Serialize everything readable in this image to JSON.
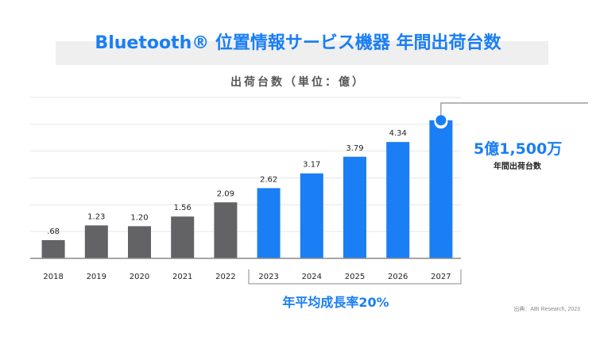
{
  "title": "Bluetooth® 位置情報サービス機器 年間出荷台数",
  "subtitle": "出荷台数（単位：億）",
  "callout": {
    "value": "5億1,500万",
    "label": "年間出荷台数"
  },
  "cagr_label": "年平均成長率20%",
  "source": "出典：ABI Research, 2023",
  "colors": {
    "accent": "#1a7ef5",
    "historical": "#636366",
    "grid": "#e6e6e6",
    "axis": "#8a8a8a"
  },
  "chart_data": {
    "type": "bar",
    "title": "Bluetooth® 位置情報サービス機器 年間出荷台数",
    "ylabel": "出荷台数（単位：億）",
    "xlabel": "",
    "categories": [
      "2018",
      "2019",
      "2020",
      "2021",
      "2022",
      "2023",
      "2024",
      "2025",
      "2026",
      "2027"
    ],
    "values": [
      0.68,
      1.23,
      1.2,
      1.56,
      2.09,
      2.62,
      3.17,
      3.79,
      4.34,
      5.15
    ],
    "data_labels": [
      ".68",
      "1.23",
      "1.20",
      "1.56",
      "2.09",
      "2.62",
      "3.17",
      "3.79",
      "4.34",
      ""
    ],
    "series_type": [
      "actual",
      "actual",
      "actual",
      "actual",
      "actual",
      "forecast",
      "forecast",
      "forecast",
      "forecast",
      "forecast"
    ],
    "ylim": [
      0,
      6
    ],
    "grid": true,
    "grid_step": 1,
    "y_tick_labels_shown": false,
    "bracket": {
      "from": "2023",
      "to": "2027",
      "label": "年平均成長率20%"
    },
    "highlight": {
      "category": "2027",
      "label": "5億1,500万 年間出荷台数"
    }
  }
}
